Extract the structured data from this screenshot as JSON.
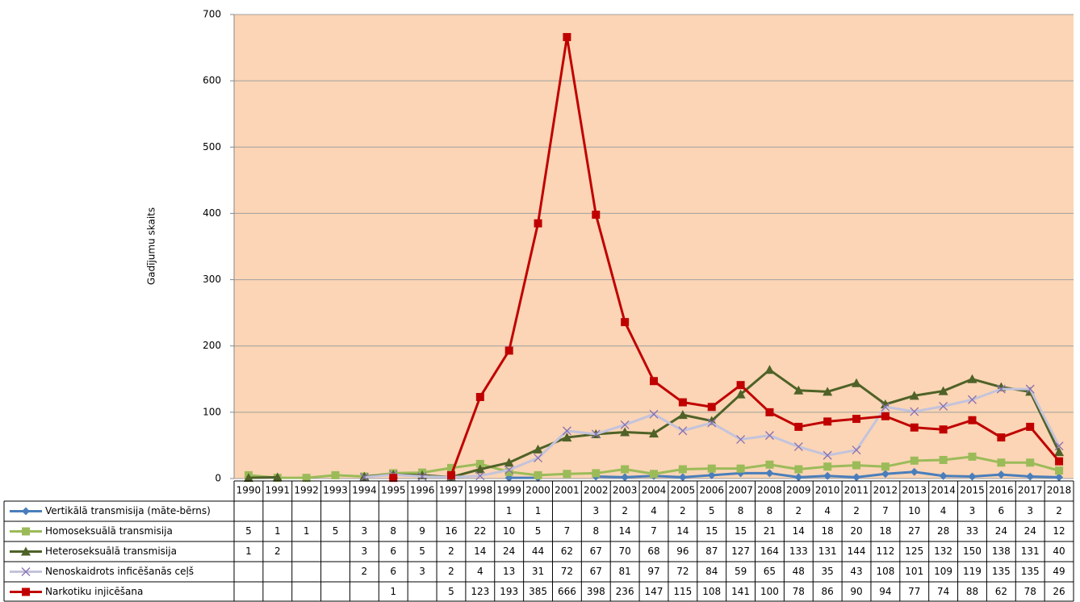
{
  "chart_data": {
    "type": "line",
    "y_label": "Gadījumu skaits",
    "categories": [
      "1990",
      "1991",
      "1992",
      "1993",
      "1994",
      "1995",
      "1996",
      "1997",
      "1998",
      "1999",
      "2000",
      "2001",
      "2002",
      "2003",
      "2004",
      "2005",
      "2006",
      "2007",
      "2008",
      "2009",
      "2010",
      "2011",
      "2012",
      "2013",
      "2014",
      "2015",
      "2016",
      "2017",
      "2018"
    ],
    "series": [
      {
        "name": "Vertikālā transmisija (māte-bērns)",
        "color": "#4a7ebb",
        "marker": "diamond",
        "values": [
          null,
          null,
          null,
          null,
          null,
          null,
          null,
          null,
          null,
          1,
          1,
          null,
          3,
          2,
          4,
          2,
          5,
          8,
          8,
          2,
          4,
          2,
          7,
          10,
          4,
          3,
          6,
          3,
          2
        ]
      },
      {
        "name": "Homoseksuālā transmisija",
        "color": "#9bbb59",
        "marker": "square",
        "values": [
          5,
          1,
          1,
          5,
          3,
          8,
          9,
          16,
          22,
          10,
          5,
          7,
          8,
          14,
          7,
          14,
          15,
          15,
          21,
          14,
          18,
          20,
          18,
          27,
          28,
          33,
          24,
          24,
          12
        ]
      },
      {
        "name": "Heteroseksuālā transmisija",
        "color": "#4f6228",
        "marker": "triangle",
        "values": [
          1,
          2,
          null,
          null,
          3,
          6,
          5,
          2,
          14,
          24,
          44,
          62,
          67,
          70,
          68,
          96,
          87,
          127,
          164,
          133,
          131,
          144,
          112,
          125,
          132,
          150,
          138,
          131,
          40
        ]
      },
      {
        "name": "Nenoskaidrots inficēšanās ceļš",
        "color": "#c3c3dc",
        "marker": "x",
        "values": [
          null,
          null,
          null,
          null,
          2,
          6,
          3,
          2,
          4,
          13,
          31,
          72,
          67,
          81,
          97,
          72,
          84,
          59,
          65,
          48,
          35,
          43,
          108,
          101,
          109,
          119,
          135,
          135,
          49
        ]
      },
      {
        "name": "Narkotiku injicēšana",
        "color": "#c00000",
        "marker": "square",
        "values": [
          null,
          null,
          null,
          null,
          null,
          1,
          null,
          5,
          123,
          193,
          385,
          666,
          398,
          236,
          147,
          115,
          108,
          141,
          100,
          78,
          86,
          90,
          94,
          77,
          74,
          88,
          62,
          78,
          26
        ]
      }
    ],
    "ylim": [
      0,
      700
    ],
    "yticks": [
      0,
      100,
      200,
      300,
      400,
      500,
      600,
      700
    ],
    "grid": true,
    "plot_background": "#fbd5b5"
  }
}
